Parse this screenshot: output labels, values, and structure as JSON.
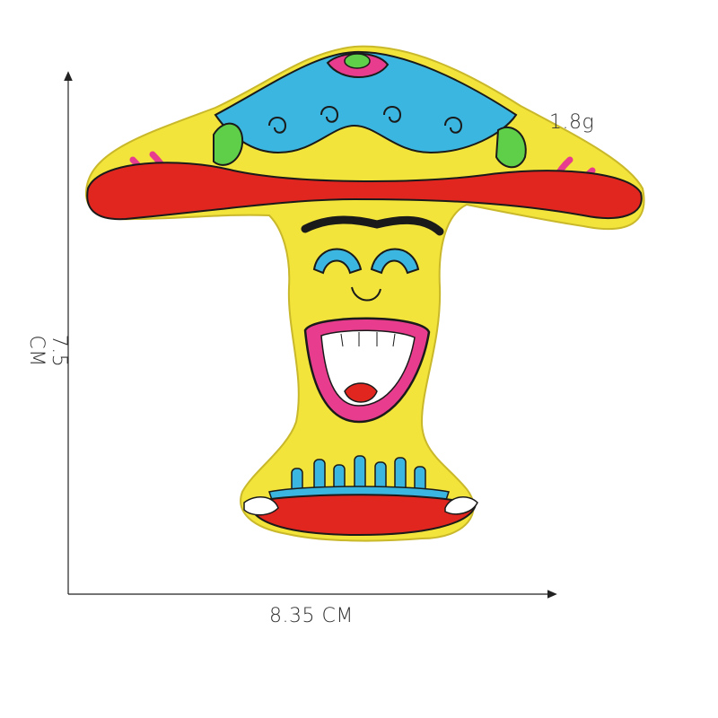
{
  "product": {
    "weight_label": "1.8g",
    "width_label": "8.35 CM",
    "height_label": "7.5 CM"
  },
  "colors": {
    "patch_yellow": "#f2e43a",
    "cap_red": "#e1251f",
    "cap_blue": "#3ab6e0",
    "accent_pink": "#e83d8e",
    "accent_green": "#5fcf4a",
    "stitch_black": "#1a1a1a",
    "dimension_line": "#222222"
  }
}
